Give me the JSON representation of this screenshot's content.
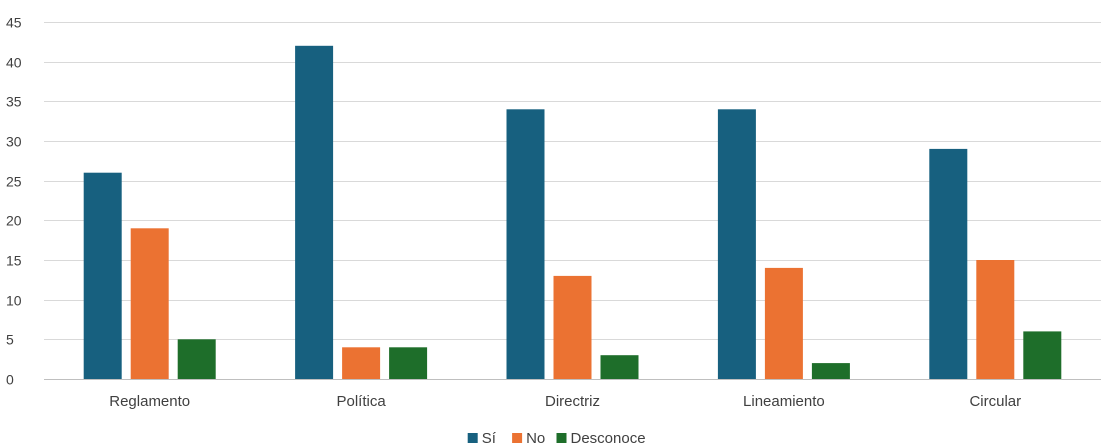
{
  "chart_data": {
    "type": "bar",
    "title": "",
    "xlabel": "",
    "ylabel": "",
    "categories": [
      "Reglamento",
      "Política",
      "Directriz",
      "Lineamiento",
      "Circular"
    ],
    "series": [
      {
        "name": "Sí",
        "color": "#17607F",
        "values": [
          26,
          42,
          34,
          34,
          29
        ]
      },
      {
        "name": "No",
        "color": "#EB7232",
        "values": [
          19,
          4,
          13,
          14,
          15
        ]
      },
      {
        "name": "Desconoce",
        "color": "#1E6E2A",
        "values": [
          5,
          4,
          3,
          2,
          6
        ]
      }
    ],
    "ylim": [
      0,
      45
    ],
    "yticks": [
      "0",
      "5",
      "10",
      "15",
      "20",
      "25",
      "30",
      "35",
      "40",
      "45"
    ],
    "grid": true,
    "legend": "bottom"
  }
}
